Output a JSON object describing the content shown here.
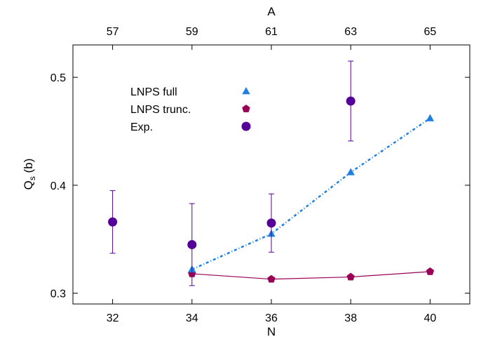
{
  "chart_data": {
    "type": "scatter",
    "xlabel": "N",
    "ylabel_main": "Q",
    "ylabel_sub": "s",
    "ylabel_unit": " (b)",
    "top_axis_label": "A",
    "xlim": [
      31,
      41
    ],
    "ylim": [
      0.29,
      0.53
    ],
    "x_ticks": [
      32,
      34,
      36,
      38,
      40
    ],
    "x_tick_labels": [
      "32",
      "34",
      "36",
      "38",
      "40"
    ],
    "top_ticks": [
      32,
      34,
      36,
      38,
      40
    ],
    "top_tick_labels": [
      "57",
      "59",
      "61",
      "63",
      "65"
    ],
    "y_ticks": [
      0.3,
      0.4,
      0.5
    ],
    "y_tick_labels": [
      "0.3",
      "0.4",
      "0.5"
    ],
    "legend_position": "top-left",
    "series": [
      {
        "name": "LNPS full",
        "marker": "triangle",
        "line": "dotted",
        "color": "#2080e0",
        "points": [
          {
            "x": 34,
            "y": 0.322
          },
          {
            "x": 36,
            "y": 0.355
          },
          {
            "x": 38,
            "y": 0.412
          },
          {
            "x": 40,
            "y": 0.462
          }
        ]
      },
      {
        "name": "LNPS trunc.",
        "marker": "pentagon",
        "line": "solid",
        "color": "#990055",
        "points": [
          {
            "x": 34,
            "y": 0.318
          },
          {
            "x": 36,
            "y": 0.313
          },
          {
            "x": 38,
            "y": 0.315
          },
          {
            "x": 40,
            "y": 0.32
          }
        ]
      },
      {
        "name": "Exp.",
        "marker": "circle",
        "line": "none",
        "color": "#550099",
        "points": [
          {
            "x": 32,
            "y": 0.366,
            "err": 0.029
          },
          {
            "x": 34,
            "y": 0.345,
            "err": 0.038
          },
          {
            "x": 36,
            "y": 0.365,
            "err": 0.027
          },
          {
            "x": 38,
            "y": 0.478,
            "err": 0.037
          }
        ]
      }
    ]
  }
}
